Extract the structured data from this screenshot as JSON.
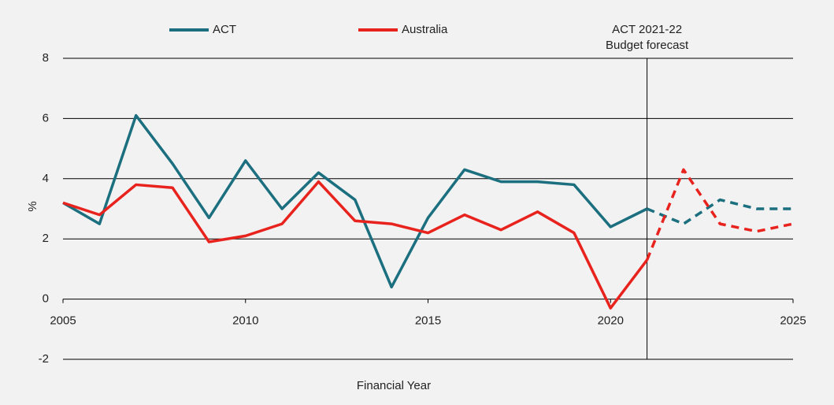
{
  "chart_data": {
    "type": "line",
    "x": [
      2005,
      2006,
      2007,
      2008,
      2009,
      2010,
      2011,
      2012,
      2013,
      2014,
      2015,
      2016,
      2017,
      2018,
      2019,
      2020,
      2021,
      2022,
      2023,
      2024,
      2025
    ],
    "series": [
      {
        "name": "ACT",
        "color": "#1b6f7f",
        "values": [
          3.2,
          2.5,
          6.1,
          4.5,
          2.7,
          4.6,
          3.0,
          4.2,
          3.3,
          0.4,
          2.7,
          4.3,
          3.9,
          3.9,
          3.8,
          2.4,
          3.0,
          2.5,
          3.3,
          3.0,
          3.0
        ]
      },
      {
        "name": "Australia",
        "color": "#e8231e",
        "values": [
          3.2,
          2.8,
          3.8,
          3.7,
          1.9,
          2.1,
          2.5,
          3.9,
          2.6,
          2.5,
          2.2,
          2.8,
          2.3,
          2.9,
          2.2,
          -0.3,
          1.3,
          4.3,
          2.5,
          2.25,
          2.5
        ]
      }
    ],
    "forecast_from": 2021,
    "annotation": {
      "x": 2021,
      "lines": [
        "ACT 2021-22",
        "Budget forecast"
      ]
    },
    "xlabel": "Financial Year",
    "ylabel": "%",
    "xlim": [
      2005,
      2025
    ],
    "xticks": [
      2005,
      2010,
      2015,
      2020,
      2025
    ],
    "ylim": [
      -2,
      8
    ],
    "yticks": [
      -2,
      0,
      2,
      4,
      6,
      8
    ],
    "grid": true
  }
}
